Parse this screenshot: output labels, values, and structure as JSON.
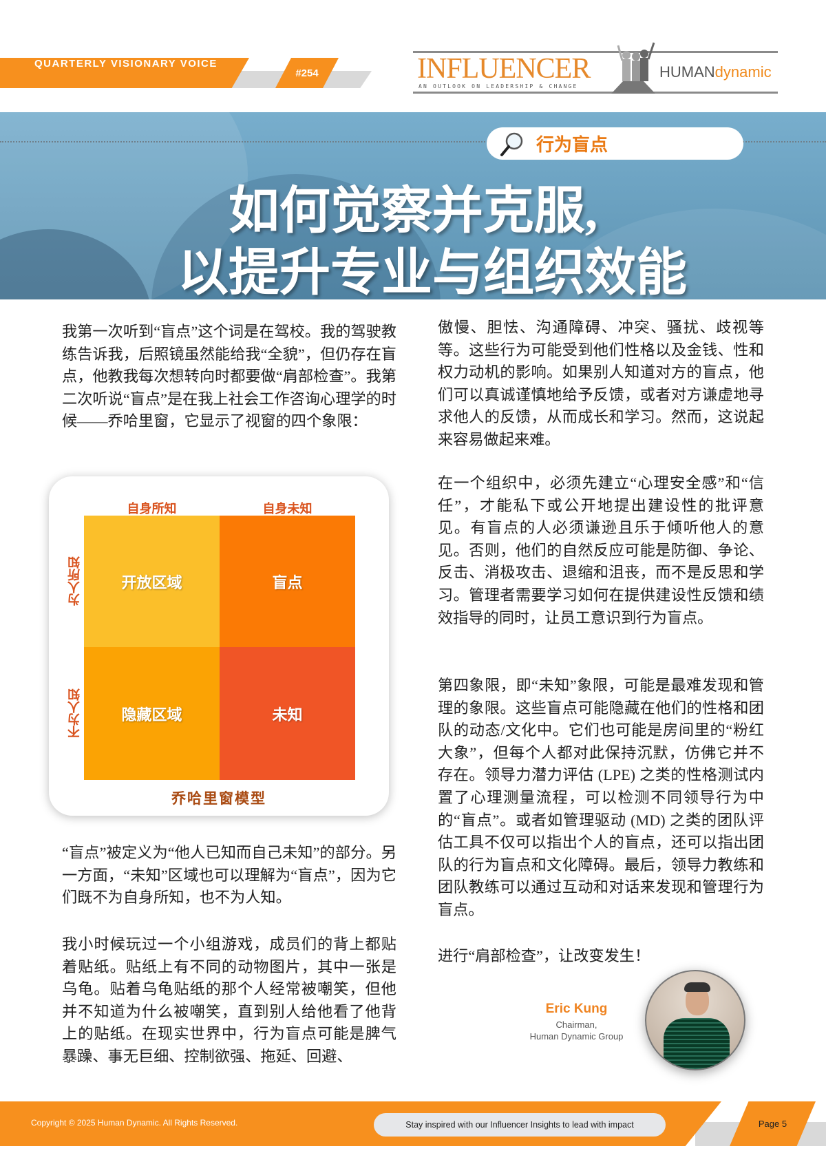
{
  "header": {
    "series": "QUARTERLY VISIONARY VOICE",
    "issue": "#254",
    "logo": {
      "name": "INFLUENCER",
      "tagline": "AN OUTLOOK ON LEADERSHIP & CHANGE",
      "brand_a": "HUMAN",
      "brand_b": "dynamic"
    }
  },
  "banner": {
    "tag": "行为盲点",
    "tag_icon": "magnifier-icon",
    "title_line1": "如何觉察并克服,",
    "title_line2": "以提升专业与组织效能"
  },
  "left_column": {
    "p1": "我第一次听到“盲点”这个词是在驾校。我的驾驶教练告诉我，后照镜虽然能给我“全貌”，但仍存在盲点，他教我每次想转向时都要做“肩部检查”。我第二次听说“盲点”是在我上社会工作咨询心理学的时候——乔哈里窗，它显示了视窗的四个象限：",
    "p2": "“盲点”被定义为“他人已知而自己未知”的部分。另一方面，“未知”区域也可以理解为“盲点”，因为它们既不为自身所知，也不为人知。",
    "p3": "我小时候玩过一个小组游戏，成员们的背上都贴着贴纸。贴纸上有不同的动物图片，其中一张是乌龟。贴着乌龟贴纸的那个人经常被嘲笑，但他并不知道为什么被嘲笑，直到别人给他看了他背上的贴纸。在现实世界中，行为盲点可能是脾气暴躁、事无巨细、控制欲强、拖延、回避、"
  },
  "johari": {
    "col_headers": [
      "自身所知",
      "自身未知"
    ],
    "row_headers": [
      "为人所知",
      "不为人知"
    ],
    "quadrants": [
      {
        "label": "开放区域",
        "color": "#fbbf2a"
      },
      {
        "label": "盲点",
        "color": "#fb7a05"
      },
      {
        "label": "隐藏区域",
        "color": "#fba304"
      },
      {
        "label": "未知",
        "color": "#f05526"
      }
    ],
    "caption": "乔哈里窗模型"
  },
  "right_column": {
    "p1": "傲慢、胆怯、沟通障碍、冲突、骚扰、歧视等等。这些行为可能受到他们性格以及金钱、性和权力动机的影响。如果别人知道对方的盲点，他们可以真诚谨慎地给予反馈，或者对方谦虚地寻求他人的反馈，从而成长和学习。然而，这说起来容易做起来难。",
    "p2": "在一个组织中，必须先建立“心理安全感”和“信任”，才能私下或公开地提出建设性的批评意见。有盲点的人必须谦逊且乐于倾听他人的意见。否则，他们的自然反应可能是防御、争论、反击、消极攻击、退缩和沮丧，而不是反思和学习。管理者需要学习如何在提供建设性反馈和绩效指导的同时，让员工意识到行为盲点。",
    "p3": "第四象限，即“未知”象限，可能是最难发现和管理的象限。这些盲点可能隐藏在他们的性格和团队的动态/文化中。它们也可能是房间里的“粉红大象”，但每个人都对此保持沉默，仿佛它并不存在。领导力潜力评估 (LPE) 之类的性格测试内置了心理测量流程，可以检测不同领导行为中的“盲点”。或者如管理驱动 (MD) 之类的团队评估工具不仅可以指出个人的盲点，还可以指出团队的行为盲点和文化障碍。最后，领导力教练和团队教练可以通过互动和对话来发现和管理行为盲点。",
    "p4": "进行“肩部检查”，让改变发生！"
  },
  "author": {
    "name": "Eric Kung",
    "title_line1": "Chairman,",
    "title_line2": "Human Dynamic Group"
  },
  "footer": {
    "copyright": "Copyright © 2025 Human Dynamic. All Rights Reserved.",
    "tagline": "Stay inspired with our Influencer Insights to lead with impact",
    "page": "Page 5"
  },
  "colors": {
    "accent": "#f7901e",
    "banner": "#6aa3c3"
  }
}
